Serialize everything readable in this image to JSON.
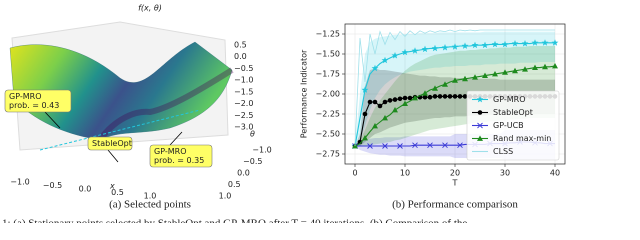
{
  "chart_data": [
    {
      "type": "surface",
      "title": "f(x, θ)",
      "xlabel": "x",
      "ylabel": "θ",
      "xticks": [
        {
          "value": -1,
          "label": "−1.0"
        },
        {
          "value": -0.5,
          "label": "−0.5"
        },
        {
          "value": 0,
          "label": "0.0"
        },
        0.5,
        {
          "value": 1,
          "label": "1.0"
        }
      ],
      "yticks": [
        {
          "value": -1,
          "label": "−1.0"
        },
        {
          "value": -0.5,
          "label": "−0.5"
        },
        {
          "value": 0,
          "label": "0.0"
        },
        0.5,
        {
          "value": 1,
          "label": "1.0"
        }
      ],
      "zticks": [
        0.5,
        {
          "value": 0,
          "label": "0.0"
        },
        {
          "value": -0.5,
          "label": "−0.5"
        },
        {
          "value": -1,
          "label": "−1.0"
        },
        {
          "value": -1.5,
          "label": "−1.5"
        },
        {
          "value": -2,
          "label": "−2.0"
        },
        {
          "value": -2.5,
          "label": "−2.5"
        },
        {
          "value": -3,
          "label": "−3.0"
        }
      ],
      "annotations": [
        {
          "lines": [
            "GP-MRO",
            "prob. = 0.43"
          ]
        },
        {
          "lines": [
            "StableOpt"
          ]
        },
        {
          "lines": [
            "GP-MRO",
            "prob. = 0.35"
          ]
        }
      ],
      "caption": "(a) Selected points"
    },
    {
      "type": "line",
      "xlabel": "T",
      "ylabel": "Performance Indicator",
      "caption": "(b) Performance comparison",
      "xlim": [
        -2,
        42
      ],
      "ylim": [
        -2.875,
        -1.125
      ],
      "xticks": [
        0,
        10,
        20,
        30,
        40
      ],
      "yticks": [
        {
          "value": -2.75,
          "label": "−2.75"
        },
        {
          "value": -2.5,
          "label": "−2.50"
        },
        {
          "value": -2.25,
          "label": "−2.25"
        },
        {
          "value": -2,
          "label": "−2.00"
        },
        {
          "value": -1.75,
          "label": "−1.75"
        },
        {
          "value": -1.5,
          "label": "−1.50"
        },
        {
          "value": -1.25,
          "label": "−1.25"
        }
      ],
      "grid": true,
      "legend_loc": "lower right",
      "x": [
        0,
        1,
        2,
        3,
        4,
        5,
        6,
        7,
        8,
        9,
        10,
        11,
        12,
        13,
        14,
        15,
        16,
        17,
        18,
        19,
        20,
        21,
        22,
        23,
        24,
        25,
        26,
        27,
        28,
        29,
        30,
        31,
        32,
        33,
        34,
        35,
        36,
        37,
        38,
        39,
        40
      ],
      "series": [
        {
          "name": "GP-MRO",
          "color": "#22c6dc",
          "marker": "star",
          "markevery": 2,
          "values": [
            -2.65,
            -2.3,
            -1.95,
            -1.75,
            -1.68,
            -1.62,
            -1.58,
            -1.55,
            -1.52,
            -1.5,
            -1.48,
            -1.47,
            -1.46,
            -1.45,
            -1.44,
            -1.43,
            -1.43,
            -1.42,
            -1.42,
            -1.41,
            -1.41,
            -1.4,
            -1.4,
            -1.4,
            -1.39,
            -1.39,
            -1.39,
            -1.38,
            -1.38,
            -1.38,
            -1.38,
            -1.37,
            -1.37,
            -1.37,
            -1.37,
            -1.37,
            -1.36,
            -1.36,
            -1.36,
            -1.36,
            -1.36
          ],
          "lower": [
            -2.65,
            -2.6,
            -2.4,
            -2.2,
            -2.05,
            -1.95,
            -1.88,
            -1.83,
            -1.79,
            -1.76,
            -1.74,
            -1.72,
            -1.71,
            -1.7,
            -1.69,
            -1.68,
            -1.67,
            -1.67,
            -1.66,
            -1.66,
            -1.65,
            -1.65,
            -1.65,
            -1.64,
            -1.64,
            -1.64,
            -1.63,
            -1.63,
            -1.63,
            -1.62,
            -1.62,
            -1.62,
            -1.62,
            -1.61,
            -1.61,
            -1.61,
            -1.61,
            -1.6,
            -1.6,
            -1.6,
            -1.6
          ],
          "upper": [
            -2.65,
            -2.0,
            -1.5,
            -1.35,
            -1.31,
            -1.29,
            -1.28,
            -1.27,
            -1.26,
            -1.26,
            -1.25,
            -1.25,
            -1.25,
            -1.24,
            -1.24,
            -1.24,
            -1.24,
            -1.23,
            -1.23,
            -1.23,
            -1.23,
            -1.23,
            -1.23,
            -1.23,
            -1.23,
            -1.23,
            -1.22,
            -1.22,
            -1.22,
            -1.22,
            -1.22,
            -1.22,
            -1.22,
            -1.22,
            -1.22,
            -1.22,
            -1.22,
            -1.22,
            -1.22,
            -1.22,
            -1.22
          ]
        },
        {
          "name": "StableOpt",
          "color": "#000000",
          "marker": "circle",
          "markevery": 1,
          "values": [
            -2.65,
            -2.6,
            -2.25,
            -2.1,
            -2.1,
            -2.15,
            -2.1,
            -2.08,
            -2.07,
            -2.06,
            -2.05,
            -2.05,
            -2.04,
            -2.04,
            -2.04,
            -2.04,
            -2.03,
            -2.03,
            -2.03,
            -2.03,
            -2.03,
            -2.03,
            -2.03,
            -2.03,
            -2.03,
            -2.03,
            -2.03,
            -2.03,
            -2.03,
            -2.03,
            -2.03,
            -2.03,
            -2.03,
            -2.03,
            -2.03,
            -2.03,
            -2.03,
            -2.03,
            -2.03,
            -2.03,
            -2.03
          ],
          "lower": [
            -2.65,
            -2.65,
            -2.6,
            -2.55,
            -2.5,
            -2.48,
            -2.45,
            -2.42,
            -2.4,
            -2.38,
            -2.36,
            -2.35,
            -2.34,
            -2.33,
            -2.32,
            -2.31,
            -2.3,
            -2.3,
            -2.29,
            -2.29,
            -2.28,
            -2.28,
            -2.28,
            -2.27,
            -2.27,
            -2.27,
            -2.27,
            -2.26,
            -2.26,
            -2.26,
            -2.26,
            -2.26,
            -2.25,
            -2.25,
            -2.25,
            -2.25,
            -2.25,
            -2.25,
            -2.25,
            -2.25,
            -2.25
          ],
          "upper": [
            -2.65,
            -2.5,
            -1.9,
            -1.7,
            -1.68,
            -1.7,
            -1.7,
            -1.71,
            -1.72,
            -1.73,
            -1.74,
            -1.75,
            -1.76,
            -1.77,
            -1.77,
            -1.78,
            -1.78,
            -1.79,
            -1.79,
            -1.79,
            -1.8,
            -1.8,
            -1.8,
            -1.8,
            -1.81,
            -1.81,
            -1.81,
            -1.81,
            -1.81,
            -1.82,
            -1.82,
            -1.82,
            -1.82,
            -1.82,
            -1.82,
            -1.82,
            -1.82,
            -1.82,
            -1.82,
            -1.82,
            -1.82
          ]
        },
        {
          "name": "GP-UCB",
          "color": "#3a3ad6",
          "marker": "x",
          "markevery": 3,
          "values": [
            -2.65,
            -2.65,
            -2.65,
            -2.65,
            -2.65,
            -2.65,
            -2.65,
            -2.65,
            -2.65,
            -2.65,
            -2.65,
            -2.65,
            -2.64,
            -2.64,
            -2.64,
            -2.64,
            -2.64,
            -2.64,
            -2.64,
            -2.64,
            -2.64,
            -2.64,
            -2.63,
            -2.63,
            -2.63,
            -2.63,
            -2.63,
            -2.62,
            -2.62,
            -2.62,
            -2.62,
            -2.61,
            -2.61,
            -2.6,
            -2.6,
            -2.6,
            -2.61,
            -2.61,
            -2.62,
            -2.62,
            -2.62
          ],
          "lower": [
            -2.65,
            -2.7,
            -2.72,
            -2.74,
            -2.75,
            -2.76,
            -2.76,
            -2.77,
            -2.77,
            -2.77,
            -2.78,
            -2.78,
            -2.78,
            -2.78,
            -2.78,
            -2.78,
            -2.78,
            -2.78,
            -2.78,
            -2.78,
            -2.8,
            -2.8,
            -2.8,
            -2.8,
            -2.8,
            -2.8,
            -2.8,
            -2.8,
            -2.8,
            -2.8,
            -2.82,
            -2.82,
            -2.82,
            -2.82,
            -2.82,
            -2.82,
            -2.82,
            -2.82,
            -2.82,
            -2.82,
            -2.82
          ],
          "upper": [
            -2.65,
            -2.6,
            -2.58,
            -2.56,
            -2.55,
            -2.55,
            -2.54,
            -2.54,
            -2.54,
            -2.54,
            -2.53,
            -2.53,
            -2.53,
            -2.53,
            -2.53,
            -2.53,
            -2.53,
            -2.53,
            -2.53,
            -2.53,
            -2.5,
            -2.5,
            -2.5,
            -2.5,
            -2.5,
            -2.5,
            -2.5,
            -2.5,
            -2.5,
            -2.5,
            -2.45,
            -2.45,
            -2.45,
            -2.45,
            -2.45,
            -2.45,
            -2.45,
            -2.45,
            -2.45,
            -2.45,
            -2.45
          ]
        },
        {
          "name": "Rand max-min",
          "color": "#1e8a1e",
          "marker": "triangle",
          "markevery": 2,
          "values": [
            -2.65,
            -2.62,
            -2.55,
            -2.47,
            -2.4,
            -2.35,
            -2.3,
            -2.26,
            -2.2,
            -2.16,
            -2.12,
            -2.09,
            -2.05,
            -2.02,
            -1.99,
            -1.95,
            -1.93,
            -1.9,
            -1.88,
            -1.85,
            -1.83,
            -1.82,
            -1.81,
            -1.8,
            -1.79,
            -1.78,
            -1.77,
            -1.76,
            -1.75,
            -1.74,
            -1.73,
            -1.72,
            -1.71,
            -1.7,
            -1.69,
            -1.68,
            -1.67,
            -1.67,
            -1.66,
            -1.66,
            -1.65
          ],
          "lower": [
            -2.65,
            -2.65,
            -2.65,
            -2.64,
            -2.63,
            -2.62,
            -2.61,
            -2.6,
            -2.58,
            -2.57,
            -2.55,
            -2.53,
            -2.51,
            -2.49,
            -2.47,
            -2.45,
            -2.44,
            -2.43,
            -2.42,
            -2.41,
            -2.4,
            -2.39,
            -2.38,
            -2.37,
            -2.36,
            -2.35,
            -2.35,
            -2.34,
            -2.34,
            -2.33,
            -2.33,
            -2.32,
            -2.32,
            -2.31,
            -2.31,
            -2.3,
            -2.3,
            -2.3,
            -2.3,
            -2.3,
            -2.3
          ],
          "upper": [
            -2.65,
            -2.58,
            -2.45,
            -2.3,
            -2.17,
            -2.08,
            -2.0,
            -1.92,
            -1.84,
            -1.77,
            -1.71,
            -1.66,
            -1.62,
            -1.59,
            -1.56,
            -1.53,
            -1.51,
            -1.5,
            -1.49,
            -1.48,
            -1.47,
            -1.46,
            -1.46,
            -1.45,
            -1.45,
            -1.44,
            -1.44,
            -1.43,
            -1.43,
            -1.42,
            -1.42,
            -1.42,
            -1.41,
            -1.41,
            -1.41,
            -1.4,
            -1.4,
            -1.4,
            -1.4,
            -1.4,
            -1.4
          ]
        },
        {
          "name": "CLSS",
          "color": "#9fe0ea",
          "marker": "none",
          "markevery": 1,
          "values": [
            -2.65,
            -1.3,
            -1.85,
            -1.25,
            -1.5,
            -1.22,
            -1.38,
            -1.23,
            -1.32,
            -1.22,
            -1.28,
            -1.21,
            -1.26,
            -1.21,
            -1.24,
            -1.21,
            -1.23,
            -1.21,
            -1.22,
            -1.2,
            -1.22,
            -1.2,
            -1.21,
            -1.2,
            -1.21,
            -1.2,
            -1.2,
            -1.2,
            -1.2,
            -1.2,
            -1.2,
            -1.2,
            -1.2,
            -1.2,
            -1.2,
            -1.2,
            -1.2,
            -1.2,
            -1.2,
            -1.2,
            -1.2
          ]
        }
      ]
    }
  ],
  "caption": "1: (a) Stationary points selected by StableOpt and GP-MRO after T = 40 iterations. (b) Comparison of the"
}
